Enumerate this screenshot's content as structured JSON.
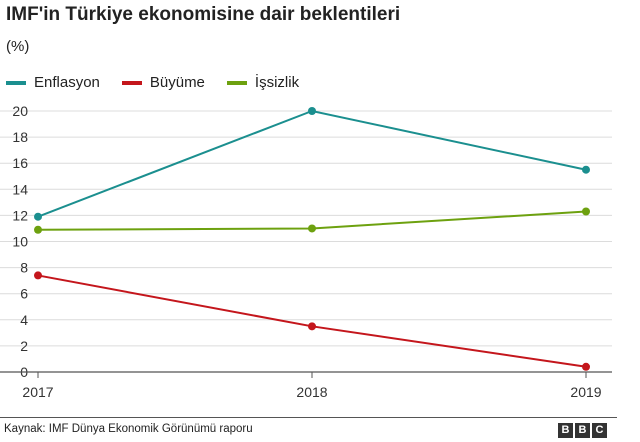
{
  "chart_data": {
    "type": "line",
    "title": "IMF'in Türkiye ekonomisine dair beklentileri",
    "subtitle": "(%)",
    "x": [
      "2017",
      "2018",
      "2019"
    ],
    "yticks": [
      "0",
      "2",
      "4",
      "6",
      "8",
      "10",
      "12",
      "14",
      "16",
      "18",
      "20"
    ],
    "ylim": [
      0,
      20
    ],
    "grid": true,
    "legend_position": "top-left",
    "series": [
      {
        "name": "Enflasyon",
        "color": "#1b8f8f",
        "values": [
          11.9,
          20.0,
          15.5
        ]
      },
      {
        "name": "Büyüme",
        "color": "#c4161c",
        "values": [
          7.4,
          3.5,
          0.4
        ]
      },
      {
        "name": "İşsizlik",
        "color": "#6da10f",
        "values": [
          10.9,
          11.0,
          12.3
        ]
      }
    ]
  },
  "footer": {
    "source": "Kaynak: IMF Dünya Ekonomik Görünümü raporu",
    "logo_letters": [
      "B",
      "B",
      "C"
    ]
  }
}
